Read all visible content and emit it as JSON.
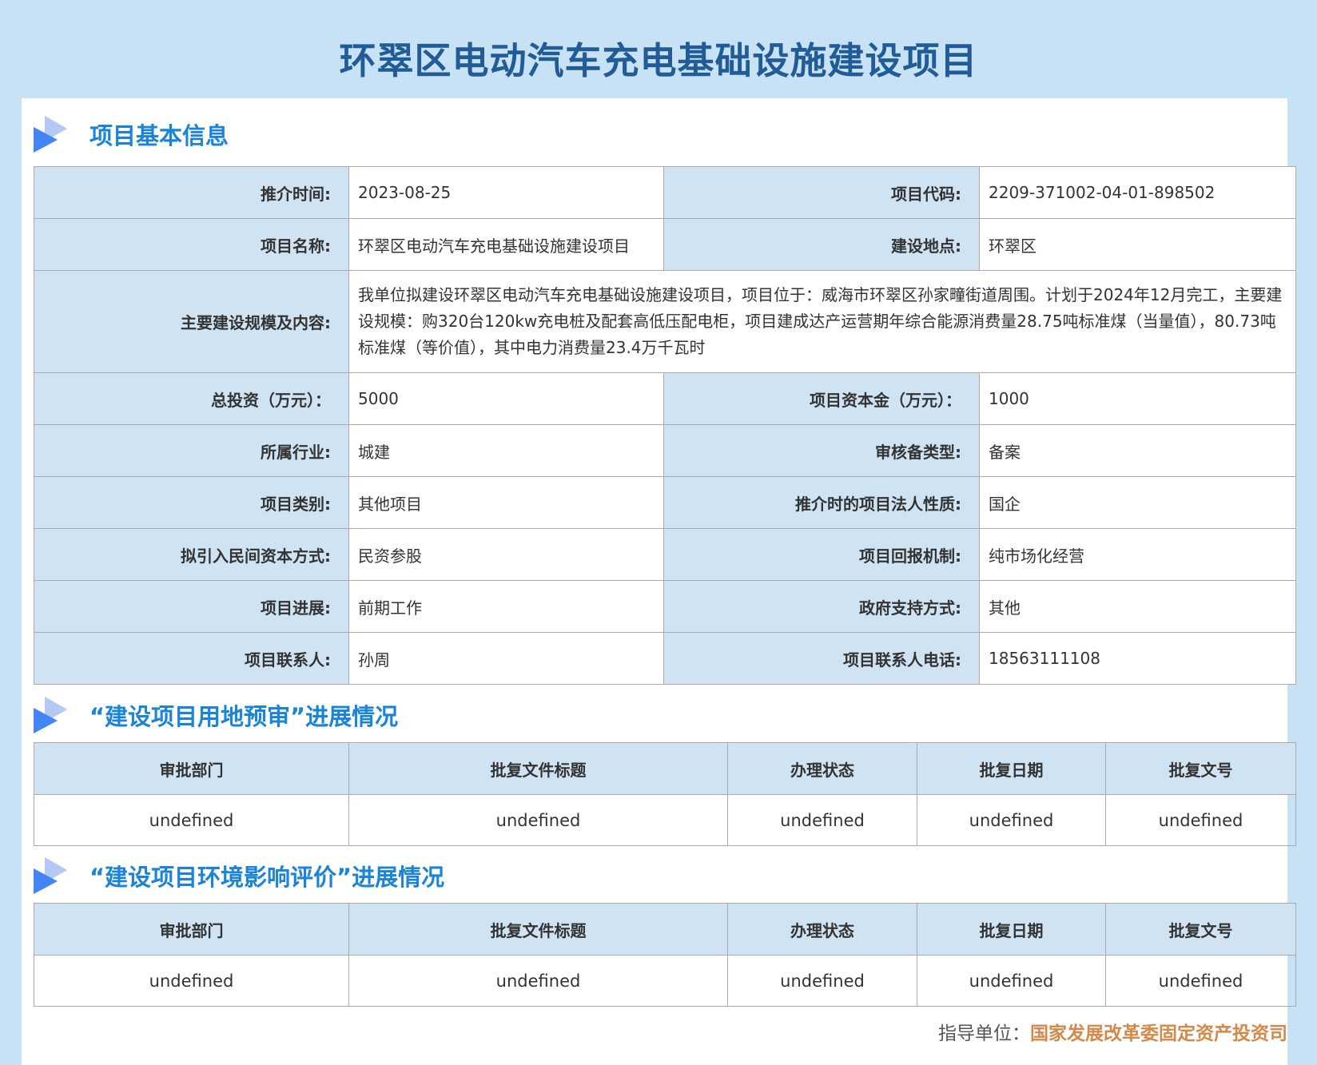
{
  "title": "环翠区电动汽车充电基础设施建设项目",
  "sections": {
    "basic": "项目基本信息",
    "land": "“建设项目用地预审”进展情况",
    "env": "“建设项目环境影响评价”进展情况"
  },
  "info": {
    "recommend_time_label": "推介时间:",
    "recommend_time": "2023-08-25",
    "code_label": "项目代码:",
    "code": "2209-371002-04-01-898502",
    "name_label": "项目名称:",
    "name": "环翠区电动汽车充电基础设施建设项目",
    "location_label": "建设地点:",
    "location": "环翠区",
    "content_label": "主要建设规模及内容:",
    "content": "我单位拟建设环翠区电动汽车充电基础设施建设项目，项目位于：威海市环翠区孙家疃街道周围。计划于2024年12月完工，主要建设规模：购320台120kw充电桩及配套高低压配电柜，项目建成达产运营期年综合能源消费量28.75吨标准煤（当量值），80.73吨标准煤（等价值），其中电力消费量23.4万千瓦时",
    "total_label": "总投资（万元）：",
    "total": "5000",
    "capital_label": "项目资本金（万元）：",
    "capital": "1000",
    "industry_label": "所属行业:",
    "industry": "城建",
    "review_label": "审核备类型:",
    "review": "备案",
    "category_label": "项目类别:",
    "category": "其他项目",
    "legal_label": "推介时的项目法人性质:",
    "legal": "国企",
    "private_label": "拟引入民间资本方式:",
    "private": "民资参股",
    "return_label": "项目回报机制:",
    "return": "纯市场化经营",
    "progress_label": "项目进展:",
    "progress": "前期工作",
    "support_label": "政府支持方式:",
    "support": "其他",
    "contact_label": "项目联系人:",
    "contact": "孙周",
    "phone_label": "项目联系人电话:",
    "phone": "18563111108"
  },
  "columns": [
    "审批部门",
    "批复文件标题",
    "办理状态",
    "批复日期",
    "批复文号"
  ],
  "land_rows": [
    [
      "undefined",
      "undefined",
      "undefined",
      "undefined",
      "undefined"
    ]
  ],
  "env_rows": [
    [
      "undefined",
      "undefined",
      "undefined",
      "undefined",
      "undefined"
    ]
  ],
  "footer": {
    "label": "指导单位：",
    "org": "国家发展改革委固定资产投资司"
  }
}
